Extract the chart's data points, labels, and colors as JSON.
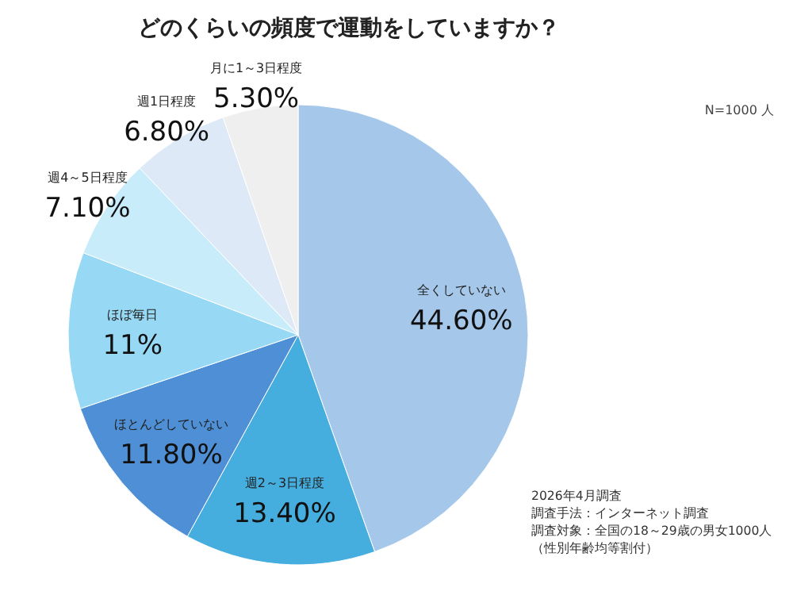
{
  "chart_data": {
    "type": "pie",
    "title": "どのくらいの頻度で運動をしていますか？",
    "categories": [
      "全くしていない",
      "週2～3日程度",
      "ほとんどしていない",
      "ほぼ毎日",
      "週4～5日程度",
      "週1日程度",
      "月に1～3日程度"
    ],
    "values": [
      44.6,
      13.4,
      11.8,
      11,
      7.1,
      6.8,
      5.3
    ],
    "value_labels": [
      "44.60%",
      "13.40%",
      "11.80%",
      "11%",
      "7.10%",
      "6.80%",
      "5.30%"
    ],
    "colors": [
      "#a5c8ea",
      "#45aedf",
      "#4e8fd6",
      "#97d9f5",
      "#c9ecfb",
      "#dde9f6",
      "#efefef"
    ],
    "annotations": [
      "N=1000 人",
      "2026年4月調査",
      "調査手法：インターネット調査",
      "調査対象：全国の18～29歳の男女1000人",
      "（性別年齢均等割付）"
    ]
  }
}
